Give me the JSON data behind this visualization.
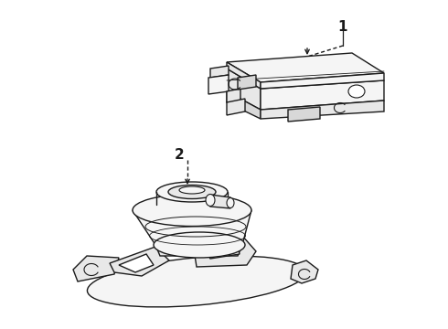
{
  "bg_color": "#ffffff",
  "line_color": "#1a1a1a",
  "fill_light": "#f5f5f5",
  "fill_mid": "#e8e8e8",
  "fill_dark": "#d8d8d8",
  "lw": 1.0,
  "fig_w": 4.9,
  "fig_h": 3.6,
  "dpi": 100,
  "label1": "1",
  "label2": "2"
}
